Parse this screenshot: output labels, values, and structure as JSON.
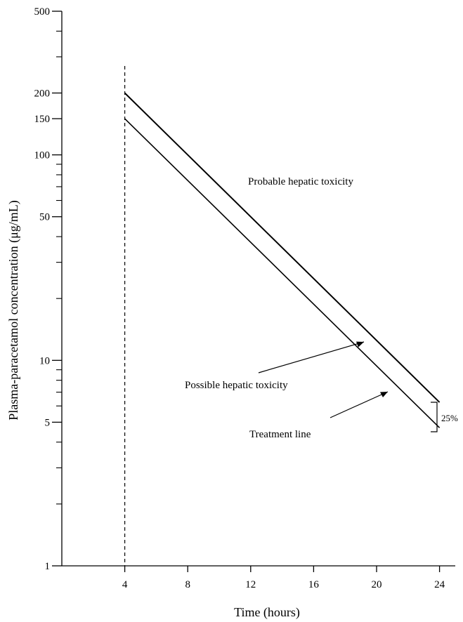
{
  "chart_data": {
    "type": "line",
    "xlabel": "Time (hours)",
    "ylabel": "Plasma-paracetamol concentration (μg/mL)",
    "xlim": [
      0,
      25
    ],
    "ylim": [
      1,
      500
    ],
    "yscale": "log",
    "grid": false,
    "x_ticks": [
      4,
      8,
      12,
      16,
      20,
      24
    ],
    "x_tick_labels": [
      "4",
      "8",
      "12",
      "16",
      "20",
      "24"
    ],
    "y_labeled_ticks": [
      1,
      5,
      10,
      50,
      100,
      150,
      200,
      500
    ],
    "y_tick_labels": [
      "1",
      "5",
      "10",
      "50",
      "100",
      "150",
      "200",
      "500"
    ],
    "y_minor_ticks": [
      2,
      3,
      4,
      6,
      7,
      8,
      9,
      20,
      30,
      40,
      60,
      70,
      80,
      90,
      300,
      400
    ],
    "dashed_reference": {
      "x": 4
    },
    "series": [
      {
        "x": [
          4,
          24
        ],
        "values": [
          200,
          6.25
        ]
      },
      {
        "x": [
          4,
          24
        ],
        "values": [
          150,
          4.7
        ]
      }
    ],
    "annotations": {
      "probable": "Probable hepatic toxicity",
      "possible": "Possible hepatic toxicity",
      "treatment": "Treatment line",
      "percent": "25%"
    }
  }
}
